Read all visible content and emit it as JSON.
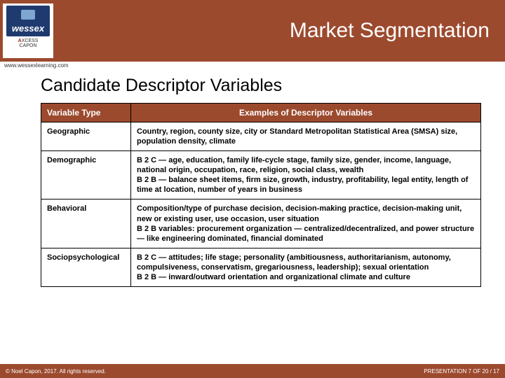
{
  "header": {
    "title": "Market Segmentation",
    "logo_text": "wessex",
    "axcess_line1_red": "A",
    "axcess_line1_rest": "XCESS",
    "axcess_line2": "CAPON",
    "url": "www.wessexlearning.com"
  },
  "content": {
    "heading": "Candidate Descriptor Variables",
    "table": {
      "col1_header": "Variable Type",
      "col2_header": "Examples of Descriptor Variables",
      "rows": [
        {
          "type": "Geographic",
          "examples": "Country, region, county size, city or Standard Metropolitan Statistical Area (SMSA) size, population density, climate"
        },
        {
          "type": "Demographic",
          "examples": "B 2 C — age, education, family life-cycle stage, family size, gender, income, language, national origin, occupation, race, religion, social class, wealth\nB 2 B — balance sheet items, firm size, growth, industry, profitability, legal entity, length of time at location, number of years in business"
        },
        {
          "type": "Behavioral",
          "examples": "Composition/type of purchase decision, decision-making practice, decision-making unit, new or existing user, use occasion, user situation\nB 2 B variables: procurement organization — centralized/decentralized, and power structure — like engineering dominated, financial dominated"
        },
        {
          "type": "Sociopsychological",
          "examples": "B 2 C — attitudes; life stage; personality (ambitiousness, authoritarianism, autonomy, compulsiveness, conservatism, gregariousness, leadership); sexual orientation\nB 2 B — inward/outward orientation and organizational climate and culture"
        }
      ]
    }
  },
  "footer": {
    "left": "© Noel Capon, 2017. All rights reserved.",
    "right": "PRESENTATION 7 OF 20 / 17"
  },
  "colors": {
    "brand": "#9c4a2e",
    "logo_bg": "#1f3a6e"
  }
}
